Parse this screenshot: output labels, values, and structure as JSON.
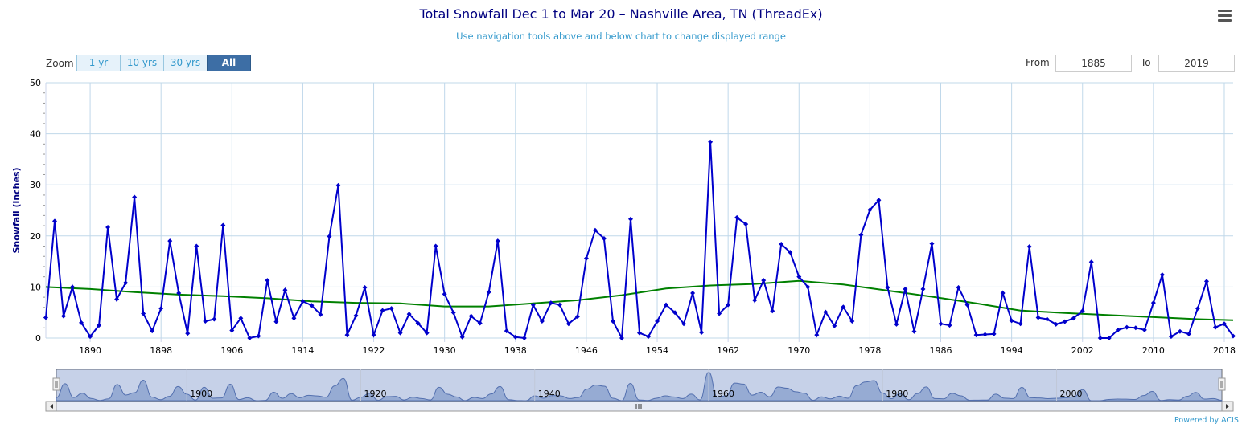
{
  "title": "Total Snowfall Dec 1 to Mar 20 – Nashville Area, TN (ThreadEx)",
  "subtitle": "Use navigation tools above and below chart to change displayed range",
  "zoom": {
    "label": "Zoom",
    "buttons": [
      "1 yr",
      "10 yrs",
      "30 yrs",
      "All"
    ],
    "active": "All"
  },
  "range": {
    "from_label": "From",
    "from_value": "1885",
    "to_label": "To",
    "to_value": "2019"
  },
  "powered_by": "Powered by ACIS",
  "navigator": {
    "labels": [
      "1900",
      "1920",
      "1940",
      "1960",
      "1980",
      "2000"
    ]
  },
  "colors": {
    "series": "#0000cc",
    "smooth": "#008000",
    "grid": "#c0d8ea",
    "navigator_fill": "#9fb3d6"
  },
  "chart_data": {
    "type": "line",
    "ylabel": "Snowfall (inches)",
    "xlabel": "",
    "ylim": [
      0,
      50
    ],
    "xlim": [
      1885,
      2019
    ],
    "yticks": [
      0,
      10,
      20,
      30,
      40,
      50
    ],
    "xticks": [
      1890,
      1898,
      1906,
      1914,
      1922,
      1930,
      1938,
      1946,
      1954,
      1962,
      1970,
      1978,
      1986,
      1994,
      2002,
      2010,
      2018
    ],
    "grid": true,
    "series": [
      {
        "x": [
          1885,
          1886,
          1887,
          1888,
          1889,
          1890,
          1891,
          1892,
          1893,
          1894,
          1895,
          1896,
          1897,
          1898,
          1899,
          1900,
          1901,
          1902,
          1903,
          1904,
          1905,
          1906,
          1907,
          1908,
          1909,
          1910,
          1911,
          1912,
          1913,
          1914,
          1915,
          1916,
          1917,
          1918,
          1919,
          1920,
          1921,
          1922,
          1923,
          1924,
          1925,
          1926,
          1927,
          1928,
          1929,
          1930,
          1931,
          1932,
          1933,
          1934,
          1935,
          1936,
          1937,
          1938,
          1939,
          1940,
          1941,
          1942,
          1943,
          1944,
          1945,
          1946,
          1947,
          1948,
          1949,
          1950,
          1951,
          1952,
          1953,
          1954,
          1955,
          1956,
          1957,
          1958,
          1959,
          1960,
          1961,
          1962,
          1963,
          1964,
          1965,
          1966,
          1967,
          1968,
          1969,
          1970,
          1971,
          1972,
          1973,
          1974,
          1975,
          1976,
          1977,
          1978,
          1979,
          1980,
          1981,
          1982,
          1983,
          1984,
          1985,
          1986,
          1987,
          1988,
          1989,
          1990,
          1991,
          1992,
          1993,
          1994,
          1995,
          1996,
          1997,
          1998,
          1999,
          2000,
          2001,
          2002,
          2003,
          2004,
          2005,
          2006,
          2007,
          2008,
          2009,
          2010,
          2011,
          2012,
          2013,
          2014,
          2015,
          2016,
          2017,
          2018,
          2019
        ],
        "values": [
          4.0,
          22.9,
          4.3,
          10.0,
          3.0,
          0.3,
          2.5,
          21.7,
          7.6,
          10.8,
          27.6,
          4.8,
          1.4,
          5.8,
          19.0,
          8.8,
          0.9,
          18.0,
          3.3,
          3.7,
          22.1,
          1.5,
          3.9,
          0.0,
          0.4,
          11.3,
          3.2,
          9.4,
          3.9,
          7.2,
          6.4,
          4.6,
          19.9,
          29.9,
          0.6,
          4.4,
          9.9,
          0.6,
          5.4,
          5.8,
          1.0,
          4.7,
          2.9,
          1.0,
          18.0,
          8.6,
          5.0,
          0.2,
          4.3,
          2.9,
          9.0,
          19.0,
          1.4,
          0.2,
          0.0,
          6.5,
          3.3,
          6.9,
          6.5,
          2.8,
          4.2,
          15.6,
          21.1,
          19.5,
          3.3,
          0.0,
          23.3,
          1.0,
          0.3,
          3.3,
          6.5,
          5.0,
          2.8,
          8.8,
          1.1,
          38.4,
          4.8,
          6.5,
          23.6,
          22.3,
          7.4,
          11.3,
          5.3,
          18.4,
          16.8,
          12.0,
          10.0,
          0.6,
          5.1,
          2.4,
          6.1,
          3.3,
          20.2,
          25.1,
          27.0,
          9.9,
          2.7,
          9.6,
          1.3,
          9.6,
          18.5,
          2.8,
          2.5,
          9.9,
          6.5,
          0.6,
          0.7,
          0.8,
          8.8,
          3.4,
          2.8,
          17.9,
          4.0,
          3.7,
          2.7,
          3.2,
          3.9,
          5.3,
          14.9,
          0.0,
          0.0,
          1.6,
          2.1,
          2.0,
          1.6,
          6.9,
          12.4,
          0.3,
          1.3,
          0.8,
          5.8,
          11.1,
          2.1,
          2.8,
          0.4
        ]
      },
      {
        "x": [
          1885,
          1890,
          1895,
          1900,
          1905,
          1910,
          1915,
          1920,
          1925,
          1930,
          1935,
          1940,
          1945,
          1950,
          1955,
          1960,
          1965,
          1970,
          1975,
          1980,
          1985,
          1990,
          1995,
          2000,
          2005,
          2010,
          2015,
          2019
        ],
        "values": [
          10.0,
          9.6,
          9.0,
          8.5,
          8.2,
          7.8,
          7.2,
          6.9,
          6.8,
          6.2,
          6.2,
          6.8,
          7.4,
          8.4,
          9.7,
          10.3,
          10.6,
          11.2,
          10.5,
          9.3,
          8.1,
          6.8,
          5.4,
          4.9,
          4.5,
          4.1,
          3.7,
          3.5
        ]
      }
    ]
  }
}
